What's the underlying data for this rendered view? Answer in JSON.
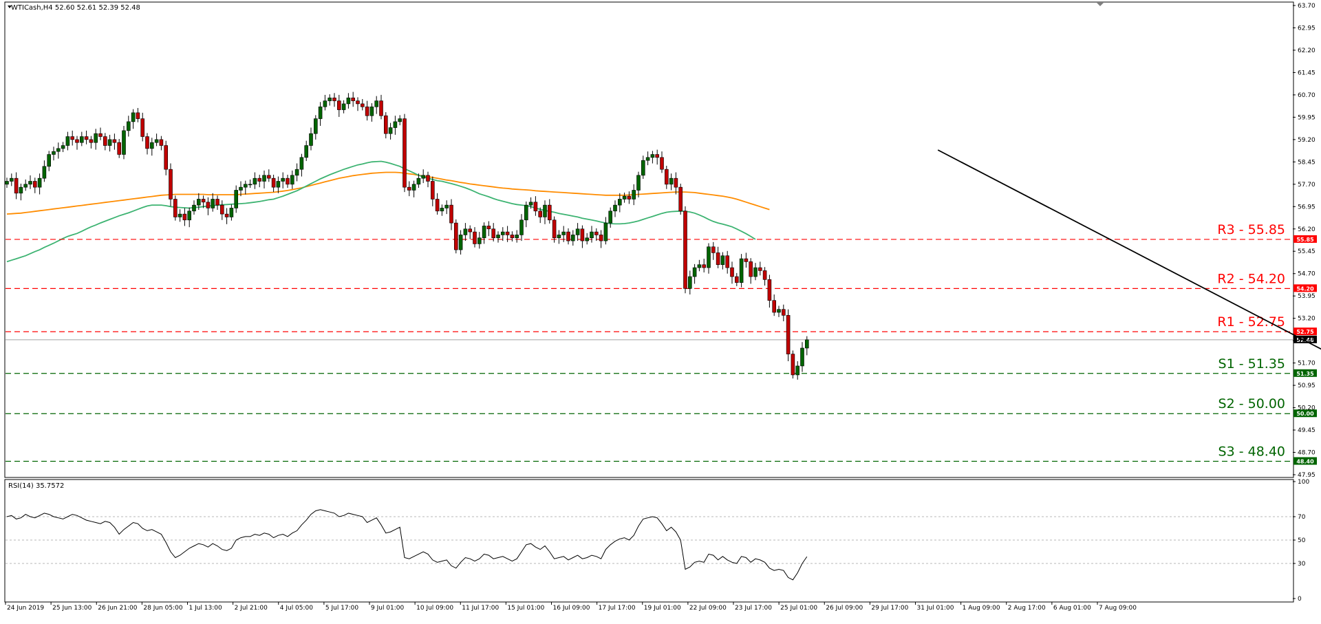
{
  "header": {
    "symbol_info": "WTICash,H4  52.60 52.61 52.39 52.48",
    "rsi_info": "RSI(14) 35.7572"
  },
  "colors": {
    "bull": "#006400",
    "bear": "#c00000",
    "ma_fast": "#3cb371",
    "ma_slow": "#ff8c00",
    "resistance": "#ff0000",
    "support": "#006400",
    "trendline": "#000000",
    "rsi": "#000000"
  },
  "chart_data": [
    {
      "type": "candlestick",
      "ylim": [
        47.95,
        63.7
      ],
      "yticks": [
        "63.70",
        "62.95",
        "62.20",
        "61.45",
        "60.70",
        "59.95",
        "59.20",
        "58.45",
        "57.70",
        "56.95",
        "56.20",
        "55.45",
        "54.70",
        "53.95",
        "53.20",
        "52.45",
        "51.70",
        "50.95",
        "50.20",
        "49.45",
        "48.70",
        "47.95"
      ],
      "x_ticks": [
        "24 Jun 2019",
        "25 Jun 13:00",
        "26 Jun 21:00",
        "28 Jun 05:00",
        "1 Jul 13:00",
        "2 Jul 21:00",
        "4 Jul 05:00",
        "5 Jul 17:00",
        "9 Jul 01:00",
        "10 Jul 09:00",
        "11 Jul 17:00",
        "15 Jul 01:00",
        "16 Jul 09:00",
        "17 Jul 17:00",
        "19 Jul 01:00",
        "22 Jul 09:00",
        "23 Jul 17:00",
        "25 Jul 01:00",
        "26 Jul 09:00",
        "29 Jul 17:00",
        "31 Jul 01:00",
        "1 Aug 09:00",
        "2 Aug 17:00",
        "6 Aug 01:00",
        "7 Aug 09:00"
      ],
      "current_price": "52.48",
      "levels": [
        {
          "label": "R3 - 55.85",
          "value": 55.85,
          "badge": "55.85",
          "kind": "resistance"
        },
        {
          "label": "R2 - 54.20",
          "value": 54.2,
          "badge": "54.20",
          "kind": "resistance"
        },
        {
          "label": "R1 - 52.75",
          "value": 52.75,
          "badge": "52.75",
          "kind": "resistance"
        },
        {
          "label": "S1 - 51.35",
          "value": 51.35,
          "badge": "51.35",
          "kind": "support"
        },
        {
          "label": "S2 - 50.00",
          "value": 50.0,
          "badge": "50.00",
          "kind": "support"
        },
        {
          "label": "S3 - 48.40",
          "value": 48.4,
          "badge": "48.40",
          "kind": "support"
        }
      ],
      "trendline": {
        "from": [
          199,
          58.85
        ],
        "to": [
          294,
          51.1
        ]
      },
      "closes": [
        57.8,
        57.9,
        57.4,
        57.6,
        57.7,
        57.8,
        57.6,
        57.9,
        58.3,
        58.7,
        58.8,
        58.9,
        59.0,
        59.3,
        59.2,
        59.1,
        59.3,
        59.2,
        59.1,
        59.4,
        59.3,
        59.0,
        59.2,
        59.1,
        58.7,
        59.5,
        59.8,
        60.1,
        59.9,
        59.3,
        58.9,
        59.1,
        59.2,
        59.0,
        58.2,
        57.2,
        56.6,
        56.7,
        56.5,
        56.8,
        57.0,
        57.2,
        57.1,
        56.9,
        57.2,
        57.0,
        56.7,
        56.6,
        56.9,
        57.5,
        57.6,
        57.7,
        57.7,
        57.9,
        57.8,
        58.0,
        57.9,
        57.6,
        57.8,
        57.9,
        57.7,
        58.0,
        58.2,
        58.6,
        59.0,
        59.4,
        59.9,
        60.3,
        60.5,
        60.6,
        60.5,
        60.2,
        60.4,
        60.6,
        60.5,
        60.4,
        60.3,
        60.0,
        60.3,
        60.5,
        60.0,
        59.4,
        59.6,
        59.8,
        59.9,
        57.6,
        57.5,
        57.7,
        57.9,
        58.0,
        57.8,
        57.2,
        56.8,
        56.9,
        57.0,
        56.4,
        55.5,
        56.0,
        56.2,
        56.1,
        55.7,
        55.9,
        56.3,
        56.2,
        55.9,
        56.0,
        56.1,
        56.0,
        55.9,
        56.0,
        56.5,
        57.0,
        57.1,
        56.8,
        56.6,
        57.0,
        56.5,
        55.9,
        56.0,
        56.1,
        55.8,
        56.0,
        56.2,
        55.8,
        55.9,
        56.1,
        56.0,
        55.8,
        56.4,
        56.8,
        57.0,
        57.2,
        57.3,
        57.2,
        57.5,
        58.0,
        58.5,
        58.6,
        58.7,
        58.6,
        58.2,
        57.7,
        57.9,
        57.6,
        56.8,
        54.2,
        54.6,
        54.9,
        55.0,
        54.9,
        55.6,
        55.4,
        55.0,
        55.3,
        54.9,
        54.6,
        54.4,
        55.2,
        55.1,
        54.6,
        54.9,
        54.8,
        54.5,
        53.8,
        53.4,
        53.5,
        53.3,
        52.0,
        51.3,
        51.6,
        52.2,
        52.48
      ],
      "ma_fast": [
        55.1,
        55.15,
        55.2,
        55.25,
        55.3,
        55.37,
        55.44,
        55.5,
        55.58,
        55.65,
        55.72,
        55.8,
        55.88,
        55.95,
        56.0,
        56.05,
        56.12,
        56.2,
        56.27,
        56.33,
        56.4,
        56.46,
        56.52,
        56.58,
        56.64,
        56.69,
        56.74,
        56.8,
        56.86,
        56.92,
        56.97,
        57.0,
        57.0,
        57.0,
        56.98,
        56.95,
        56.93,
        56.92,
        56.91,
        56.9,
        56.92,
        56.93,
        56.95,
        56.97,
        56.98,
        57.0,
        57.01,
        57.02,
        57.03,
        57.04,
        57.05,
        57.06,
        57.08,
        57.1,
        57.12,
        57.15,
        57.18,
        57.2,
        57.25,
        57.3,
        57.36,
        57.42,
        57.48,
        57.56,
        57.64,
        57.72,
        57.8,
        57.88,
        57.95,
        58.02,
        58.08,
        58.14,
        58.2,
        58.25,
        58.3,
        58.35,
        58.38,
        58.42,
        58.45,
        58.46,
        58.47,
        58.44,
        58.4,
        58.35,
        58.3,
        58.22,
        58.15,
        58.08,
        58.0,
        57.95,
        57.9,
        57.86,
        57.82,
        57.8,
        57.76,
        57.72,
        57.68,
        57.63,
        57.58,
        57.52,
        57.45,
        57.38,
        57.33,
        57.28,
        57.22,
        57.17,
        57.13,
        57.09,
        57.05,
        57.02,
        57.0,
        56.98,
        56.95,
        56.9,
        56.86,
        56.82,
        56.79,
        56.76,
        56.72,
        56.69,
        56.66,
        56.63,
        56.6,
        56.56,
        56.53,
        56.5,
        56.47,
        56.43,
        56.4,
        56.38,
        56.37,
        56.37,
        56.38,
        56.4,
        56.43,
        56.47,
        56.52,
        56.57,
        56.62,
        56.67,
        56.72,
        56.76,
        56.78,
        56.79,
        56.8,
        56.79,
        56.77,
        56.73,
        56.67,
        56.6,
        56.52,
        56.45,
        56.4,
        56.36,
        56.32,
        56.27,
        56.2,
        56.12,
        56.04,
        55.95,
        55.85
      ],
      "ma_slow": [
        56.7,
        56.71,
        56.72,
        56.73,
        56.75,
        56.77,
        56.79,
        56.81,
        56.83,
        56.85,
        56.87,
        56.89,
        56.91,
        56.93,
        56.95,
        56.97,
        56.99,
        57.01,
        57.03,
        57.05,
        57.07,
        57.09,
        57.11,
        57.13,
        57.15,
        57.17,
        57.19,
        57.21,
        57.23,
        57.25,
        57.27,
        57.29,
        57.31,
        57.33,
        57.34,
        57.35,
        57.36,
        57.36,
        57.36,
        57.36,
        57.36,
        57.36,
        57.36,
        57.35,
        57.35,
        57.35,
        57.35,
        57.35,
        57.35,
        57.35,
        57.36,
        57.37,
        57.38,
        57.39,
        57.4,
        57.41,
        57.42,
        57.43,
        57.45,
        57.47,
        57.49,
        57.52,
        57.55,
        57.58,
        57.62,
        57.66,
        57.7,
        57.74,
        57.78,
        57.82,
        57.86,
        57.9,
        57.93,
        57.96,
        57.99,
        58.01,
        58.03,
        58.05,
        58.07,
        58.08,
        58.09,
        58.1,
        58.1,
        58.1,
        58.09,
        58.07,
        58.05,
        58.03,
        58.0,
        57.98,
        57.95,
        57.93,
        57.9,
        57.87,
        57.84,
        57.82,
        57.79,
        57.76,
        57.74,
        57.71,
        57.69,
        57.67,
        57.65,
        57.63,
        57.61,
        57.59,
        57.57,
        57.56,
        57.54,
        57.53,
        57.52,
        57.51,
        57.5,
        57.48,
        57.47,
        57.46,
        57.45,
        57.44,
        57.43,
        57.42,
        57.41,
        57.4,
        57.39,
        57.38,
        57.37,
        57.36,
        57.35,
        57.34,
        57.33,
        57.33,
        57.33,
        57.33,
        57.33,
        57.34,
        57.35,
        57.36,
        57.37,
        57.38,
        57.39,
        57.4,
        57.41,
        57.42,
        57.43,
        57.44,
        57.44,
        57.44,
        57.43,
        57.42,
        57.4,
        57.38,
        57.36,
        57.34,
        57.32,
        57.3,
        57.27,
        57.24,
        57.2,
        57.15,
        57.1,
        57.05,
        57.0,
        56.95,
        56.9,
        56.85
      ],
      "ma_start_index": 0
    },
    {
      "type": "line",
      "name": "RSI(14)",
      "ylim": [
        0,
        100
      ],
      "yticks": [
        "100",
        "70",
        "50",
        "30",
        "0"
      ],
      "levels_dashed": [
        70,
        50,
        30
      ],
      "values": [
        70,
        71,
        68,
        69,
        72,
        70,
        69,
        71,
        73,
        72,
        70,
        69,
        68,
        70,
        72,
        71,
        69,
        67,
        66,
        65,
        64,
        66,
        65,
        61,
        55,
        59,
        62,
        65,
        64,
        60,
        58,
        59,
        57,
        55,
        48,
        40,
        35,
        37,
        40,
        43,
        45,
        47,
        46,
        44,
        47,
        45,
        42,
        41,
        43,
        50,
        52,
        53,
        53,
        55,
        54,
        56,
        55,
        52,
        54,
        55,
        53,
        56,
        58,
        63,
        67,
        72,
        75,
        76,
        75,
        74,
        73,
        70,
        71,
        73,
        72,
        71,
        70,
        65,
        67,
        69,
        63,
        56,
        57,
        59,
        61,
        35,
        34,
        36,
        38,
        40,
        38,
        33,
        31,
        32,
        33,
        28,
        26,
        31,
        35,
        34,
        32,
        34,
        38,
        37,
        34,
        35,
        36,
        34,
        32,
        34,
        40,
        46,
        47,
        44,
        42,
        45,
        40,
        34,
        35,
        36,
        33,
        35,
        37,
        34,
        35,
        37,
        36,
        34,
        42,
        46,
        49,
        51,
        52,
        50,
        54,
        62,
        68,
        69,
        70,
        69,
        64,
        58,
        61,
        57,
        50,
        25,
        27,
        31,
        32,
        31,
        38,
        37,
        33,
        36,
        33,
        31,
        30,
        36,
        35,
        31,
        34,
        33,
        31,
        26,
        24,
        25,
        24,
        18,
        16,
        22,
        30,
        35.8
      ]
    }
  ]
}
